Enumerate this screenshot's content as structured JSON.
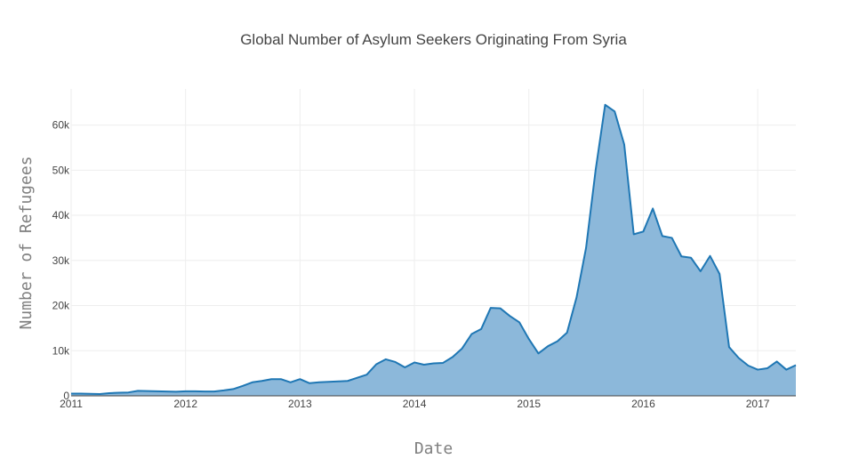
{
  "chart_data": {
    "type": "area",
    "title": "Global Number of Asylum Seekers Originating From Syria",
    "xlabel": "Date",
    "ylabel": "Number of Refugees",
    "x_ticks": [
      "2011",
      "2012",
      "2013",
      "2014",
      "2015",
      "2016",
      "2017"
    ],
    "y_ticks": [
      {
        "value": 0,
        "label": "0"
      },
      {
        "value": 10000,
        "label": "10k"
      },
      {
        "value": 20000,
        "label": "20k"
      },
      {
        "value": 30000,
        "label": "30k"
      },
      {
        "value": 40000,
        "label": "40k"
      },
      {
        "value": 50000,
        "label": "50k"
      },
      {
        "value": 60000,
        "label": "60k"
      }
    ],
    "xlim": [
      "2011-01",
      "2017-05"
    ],
    "ylim": [
      0,
      68000
    ],
    "grid": true,
    "colors": {
      "line": "#1f77b4",
      "fill": "#8cb8da"
    },
    "series": [
      {
        "x": [
          "2011-01",
          "2011-02",
          "2011-03",
          "2011-04",
          "2011-05",
          "2011-06",
          "2011-07",
          "2011-08",
          "2011-09",
          "2011-10",
          "2011-11",
          "2011-12",
          "2012-01",
          "2012-02",
          "2012-03",
          "2012-04",
          "2012-05",
          "2012-06",
          "2012-07",
          "2012-08",
          "2012-09",
          "2012-10",
          "2012-11",
          "2012-12",
          "2013-01",
          "2013-02",
          "2013-03",
          "2013-04",
          "2013-05",
          "2013-06",
          "2013-07",
          "2013-08",
          "2013-09",
          "2013-10",
          "2013-11",
          "2013-12",
          "2014-01",
          "2014-02",
          "2014-03",
          "2014-04",
          "2014-05",
          "2014-06",
          "2014-07",
          "2014-08",
          "2014-09",
          "2014-10",
          "2014-11",
          "2014-12",
          "2015-01",
          "2015-02",
          "2015-03",
          "2015-04",
          "2015-05",
          "2015-06",
          "2015-07",
          "2015-08",
          "2015-09",
          "2015-10",
          "2015-11",
          "2015-12",
          "2016-01",
          "2016-02",
          "2016-03",
          "2016-04",
          "2016-05",
          "2016-06",
          "2016-07",
          "2016-08",
          "2016-09",
          "2016-10",
          "2016-11",
          "2016-12",
          "2017-01",
          "2017-02",
          "2017-03",
          "2017-04",
          "2017-05"
        ],
        "values": [
          500,
          500,
          450,
          400,
          600,
          700,
          750,
          1100,
          1050,
          1000,
          950,
          900,
          1000,
          1000,
          950,
          950,
          1200,
          1500,
          2200,
          3000,
          3300,
          3700,
          3700,
          3000,
          3700,
          2800,
          3000,
          3100,
          3200,
          3300,
          4000,
          4700,
          7000,
          8100,
          7500,
          6300,
          7400,
          6900,
          7200,
          7300,
          8600,
          10500,
          13700,
          14800,
          19500,
          19400,
          17700,
          16300,
          12600,
          9400,
          11000,
          12100,
          14000,
          21800,
          32800,
          50000,
          64500,
          63000,
          55700,
          35800,
          36400,
          41500,
          35400,
          35000,
          30900,
          30600,
          27600,
          31000,
          27000,
          10800,
          8400,
          6700,
          5800,
          6100,
          7600,
          5800,
          6800
        ]
      }
    ]
  }
}
